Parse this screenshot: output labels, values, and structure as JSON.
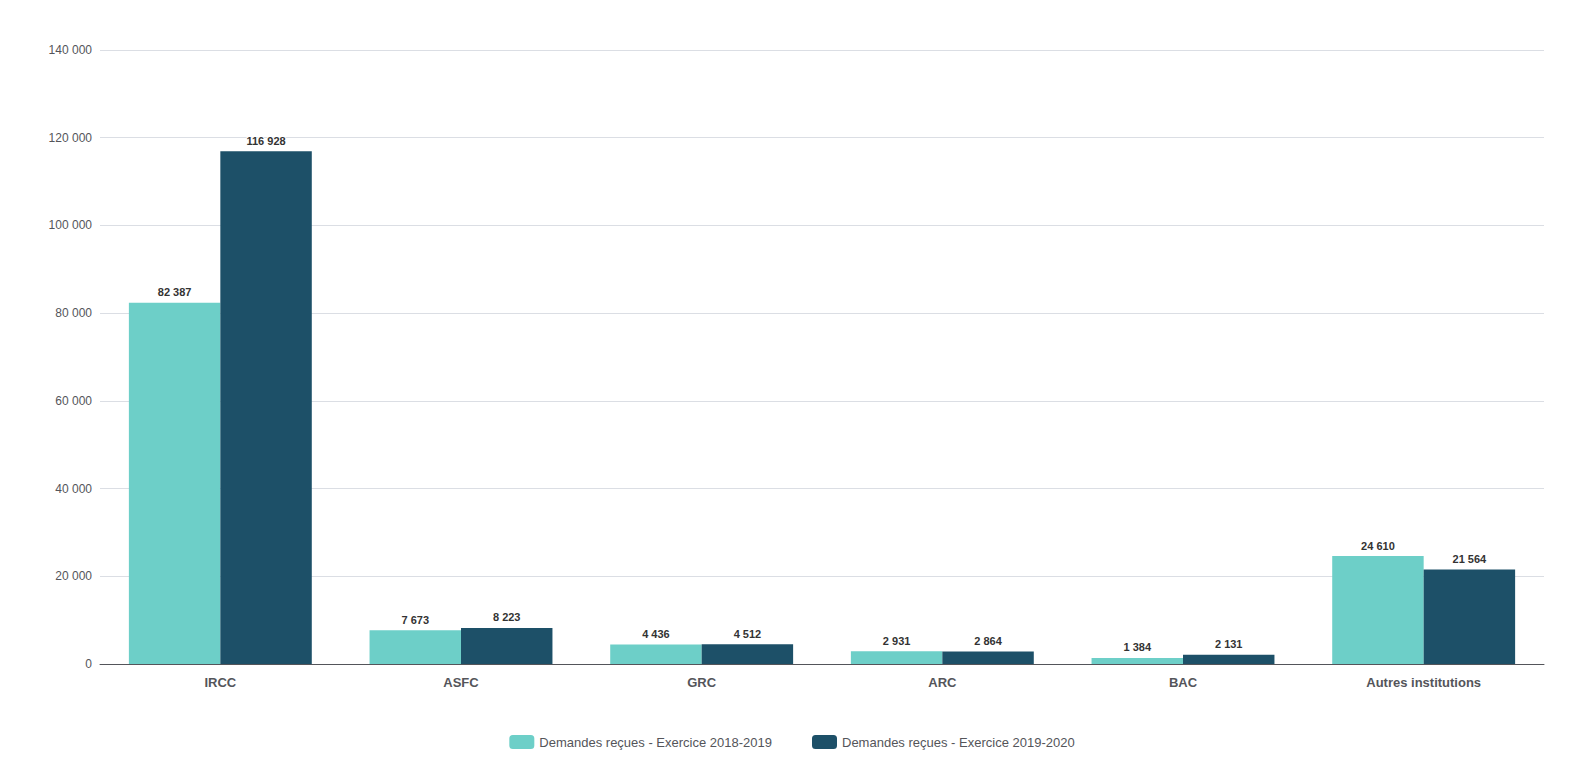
{
  "chart_data": {
    "type": "bar",
    "categories": [
      "IRCC",
      "ASFC",
      "GRC",
      "ARC",
      "BAC",
      "Autres institutions"
    ],
    "series": [
      {
        "name": "Demandes reçues - Exercice 2018-2019",
        "color": "#6dcfc8",
        "values": [
          82387,
          7673,
          4436,
          2931,
          1384,
          24610
        ],
        "value_labels": [
          "82 387",
          "7 673",
          "4 436",
          "2 931",
          "1 384",
          "24 610"
        ]
      },
      {
        "name": "Demandes reçues - Exercice 2019-2020",
        "color": "#1d5068",
        "values": [
          116928,
          8223,
          4512,
          2864,
          2131,
          21564
        ],
        "value_labels": [
          "116 928",
          "8 223",
          "4 512",
          "2 864",
          "2 131",
          "21 564"
        ]
      }
    ],
    "ylim": [
      0,
      140000
    ],
    "yticks": [
      0,
      {
        "value": 20000,
        "label": "20 000"
      },
      {
        "value": 40000,
        "label": "40 000"
      },
      {
        "value": 60000,
        "label": "60 000"
      },
      {
        "value": 80000,
        "label": "80 000"
      },
      {
        "value": 100000,
        "label": "100 000"
      },
      {
        "value": 120000,
        "label": "120 000"
      },
      {
        "value": 140000,
        "label": "140 000"
      }
    ],
    "grid": true,
    "legend": "bottom",
    "data_labels": true
  }
}
